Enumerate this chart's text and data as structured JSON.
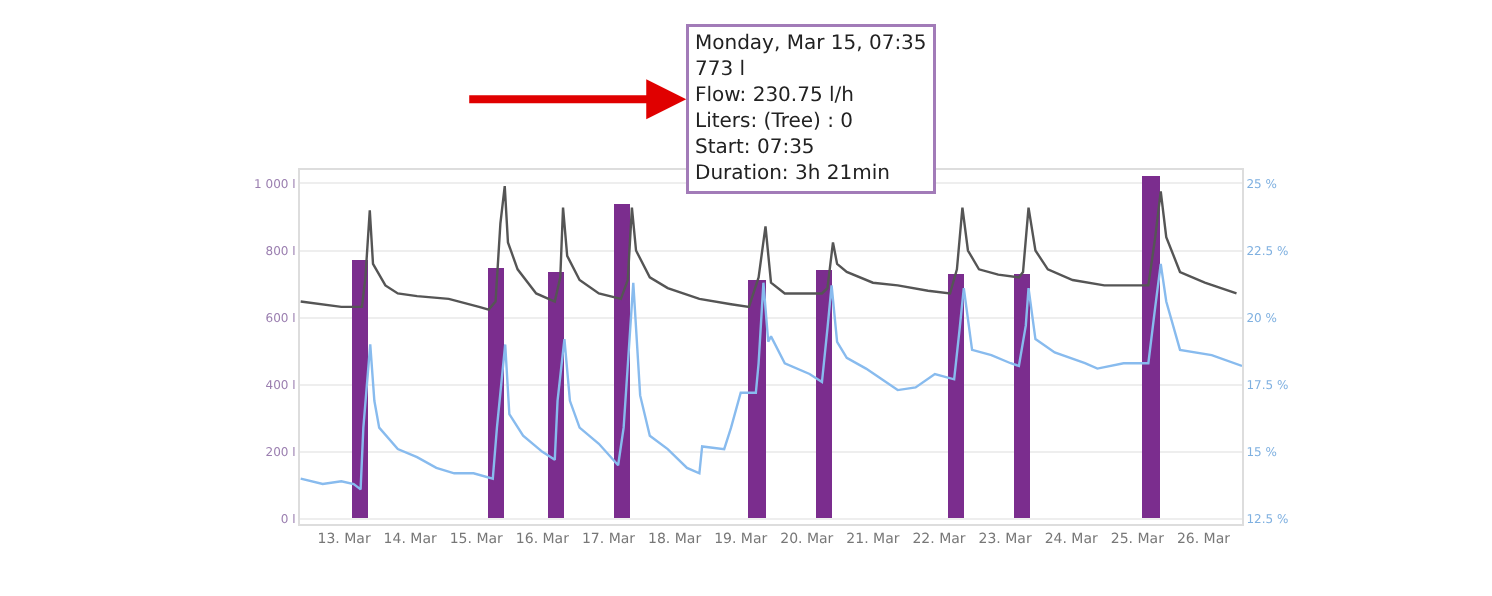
{
  "chart_data": {
    "type": "bar",
    "annotations": [
      "Monday, Mar 15, 07:35\n773 l\nFlow: 230.75 l/h\nLiters: (Tree) : 0\nStart: 07:35\nDuration: 3h 21min"
    ],
    "xlim": [
      "--03-12T08:00",
      "--03-26T14:00"
    ],
    "xticks": [
      {
        "value": "--03-13",
        "label": "13. Mar"
      },
      {
        "value": "--03-14",
        "label": "14. Mar"
      },
      {
        "value": "--03-15",
        "label": "15. Mar"
      },
      {
        "value": "--03-16",
        "label": "16. Mar"
      },
      {
        "value": "--03-17",
        "label": "17. Mar"
      },
      {
        "value": "--03-18",
        "label": "18. Mar"
      },
      {
        "value": "--03-19",
        "label": "19. Mar"
      },
      {
        "value": "--03-20",
        "label": "20. Mar"
      },
      {
        "value": "--03-21",
        "label": "21. Mar"
      },
      {
        "value": "--03-22",
        "label": "22. Mar"
      },
      {
        "value": "--03-23",
        "label": "23. Mar"
      },
      {
        "value": "--03-24",
        "label": "24. Mar"
      },
      {
        "value": "--03-25",
        "label": "25. Mar"
      },
      {
        "value": "--03-26",
        "label": "26. Mar"
      }
    ],
    "ylim": [
      -15,
      1040
    ],
    "yticks": [
      {
        "value": 0,
        "label": "0 l"
      },
      {
        "value": 200,
        "label": "200 l"
      },
      {
        "value": 400,
        "label": "400 l"
      },
      {
        "value": 600,
        "label": "600 l"
      },
      {
        "value": 800,
        "label": "800 l"
      },
      {
        "value": 1000,
        "label": "1 000 l"
      }
    ],
    "y2lim": [
      12.31,
      25.5
    ],
    "y2ticks": [
      {
        "value": 12.5,
        "label": "12.5 %"
      },
      {
        "value": 15,
        "label": "15 %"
      },
      {
        "value": 17.5,
        "label": "17.5 %"
      },
      {
        "value": 20,
        "label": "20 %"
      },
      {
        "value": 22.5,
        "label": "22.5 %"
      },
      {
        "value": 25,
        "label": "25 %"
      }
    ],
    "grid": "y",
    "series": [
      {
        "color": "#7b2d8e",
        "x": [
          "--03-13T06:00",
          "--03-15T07:00",
          "--03-16T05:00",
          "--03-17T05:00",
          "--03-19T06:00",
          "--03-20T06:30",
          "--03-22T06:00",
          "--03-23T06:00",
          "--03-25T05:00"
        ],
        "values": [
          773,
          750,
          735,
          937,
          714,
          744,
          728,
          728,
          1024
        ]
      },
      {
        "type": "line",
        "axis": "y2",
        "color": "#555555",
        "x": [
          "--03-12T08:15",
          "--03-12T23:00",
          "--03-13T06:30",
          "--03-13T07:45",
          "--03-13T09:20",
          "--03-13T10:30",
          "--03-13T15:00",
          "--03-13T19:30",
          "--03-14T02:30",
          "--03-14T14:00",
          "--03-15T01:00",
          "--03-15T04:30",
          "--03-15T07:00",
          "--03-15T08:45",
          "--03-15T10:20",
          "--03-15T11:30",
          "--03-15T15:00",
          "--03-15T21:45",
          "--03-16T04:30",
          "--03-16T06:30",
          "--03-16T07:30",
          "--03-16T09:00",
          "--03-16T13:30",
          "--03-16T20:30",
          "--03-17T04:30",
          "--03-17T07:00",
          "--03-17T08:30",
          "--03-17T10:00",
          "--03-17T15:00",
          "--03-17T21:30",
          "--03-18T09:00",
          "--03-18T20:30",
          "--03-19T03:00",
          "--03-19T06:30",
          "--03-19T09:00",
          "--03-19T11:00",
          "--03-19T16:00",
          "--03-20T05:30",
          "--03-20T07:30",
          "--03-20T09:30",
          "--03-20T11:00",
          "--03-20T14:30",
          "--03-21T00:00",
          "--03-21T09:00",
          "--03-21T20:00",
          "--03-22T04:00",
          "--03-22T06:30",
          "--03-22T08:30",
          "--03-22T10:30",
          "--03-22T14:30",
          "--03-22T21:30",
          "--03-23T05:00",
          "--03-23T06:30",
          "--03-23T08:30",
          "--03-23T11:00",
          "--03-23T15:30",
          "--03-24T00:30",
          "--03-24T12:00",
          "--03-25T04:00",
          "--03-25T06:30",
          "--03-25T08:30",
          "--03-25T10:30",
          "--03-25T15:30",
          "--03-26T00:30",
          "--03-26T12:00"
        ],
        "values": [
          20.6,
          20.4,
          20.4,
          21.5,
          24.0,
          22.0,
          21.2,
          20.9,
          20.8,
          20.7,
          20.4,
          20.3,
          20.6,
          23.5,
          24.9,
          22.8,
          21.8,
          20.9,
          20.6,
          21.5,
          24.1,
          22.3,
          21.4,
          20.9,
          20.7,
          21.4,
          24.1,
          22.5,
          21.5,
          21.1,
          20.7,
          20.5,
          20.4,
          21.5,
          23.4,
          21.3,
          20.9,
          20.9,
          21.1,
          22.8,
          22.0,
          21.7,
          21.3,
          21.2,
          21.0,
          20.9,
          21.8,
          24.1,
          22.5,
          21.8,
          21.6,
          21.5,
          21.7,
          24.1,
          22.5,
          21.8,
          21.4,
          21.2,
          21.2,
          23.0,
          24.7,
          23.0,
          21.7,
          21.3,
          20.9
        ]
      },
      {
        "type": "line",
        "axis": "y2",
        "color": "#88bbee",
        "x": [
          "--03-12T08:15",
          "--03-12T16:15",
          "--03-12T23:00",
          "--03-13T03:30",
          "--03-13T06:00",
          "--03-13T07:00",
          "--03-13T09:30",
          "--03-13T11:00",
          "--03-13T12:45",
          "--03-13T19:30",
          "--03-14T02:30",
          "--03-14T09:30",
          "--03-14T16:00",
          "--03-14T23:00",
          "--03-15T06:00",
          "--03-15T07:30",
          "--03-15T10:30",
          "--03-15T12:00",
          "--03-15T17:00",
          "--03-16T00:00",
          "--03-16T04:30",
          "--03-16T05:30",
          "--03-16T08:00",
          "--03-16T10:00",
          "--03-16T13:30",
          "--03-16T20:30",
          "--03-17T03:30",
          "--03-17T05:30",
          "--03-17T09:00",
          "--03-17T11:30",
          "--03-17T15:00",
          "--03-17T21:30",
          "--03-18T04:30",
          "--03-18T09:00",
          "--03-18T10:00",
          "--03-18T18:00",
          "--03-18T20:30",
          "--03-19T00:00",
          "--03-19T05:30",
          "--03-19T06:30",
          "--03-19T08:15",
          "--03-19T10:00",
          "--03-19T11:00",
          "--03-19T16:00",
          "--03-20T01:00",
          "--03-20T05:30",
          "--03-20T07:30",
          "--03-20T09:00",
          "--03-20T11:00",
          "--03-20T14:30",
          "--03-20T21:30",
          "--03-21T09:00",
          "--03-21T15:30",
          "--03-21T22:30",
          "--03-22T05:30",
          "--03-22T07:30",
          "--03-22T09:00",
          "--03-22T12:00",
          "--03-22T19:00",
          "--03-23T02:00",
          "--03-23T05:00",
          "--03-23T07:30",
          "--03-23T08:30",
          "--03-23T11:00",
          "--03-23T18:00",
          "--03-24T05:00",
          "--03-24T09:30",
          "--03-24T19:00",
          "--03-25T04:00",
          "--03-25T06:30",
          "--03-25T08:30",
          "--03-25T10:30",
          "--03-25T15:30",
          "--03-26T03:00",
          "--03-26T14:00"
        ],
        "values": [
          14.0,
          13.8,
          13.9,
          13.8,
          13.6,
          15.9,
          19.0,
          16.9,
          15.9,
          15.1,
          14.8,
          14.4,
          14.2,
          14.2,
          14.0,
          15.9,
          19.0,
          16.4,
          15.6,
          15.0,
          14.7,
          16.9,
          19.2,
          16.9,
          15.9,
          15.3,
          14.5,
          15.9,
          21.3,
          17.1,
          15.6,
          15.1,
          14.4,
          14.2,
          15.2,
          15.1,
          15.9,
          17.2,
          17.2,
          18.3,
          21.3,
          19.1,
          19.3,
          18.3,
          17.9,
          17.6,
          19.6,
          21.2,
          19.1,
          18.5,
          18.1,
          17.3,
          17.4,
          17.9,
          17.7,
          19.6,
          21.1,
          18.8,
          18.6,
          18.3,
          18.2,
          19.7,
          21.1,
          19.2,
          18.7,
          18.3,
          18.1,
          18.3,
          18.3,
          20.4,
          22.0,
          20.6,
          18.8,
          18.6,
          18.2
        ]
      }
    ]
  }
}
